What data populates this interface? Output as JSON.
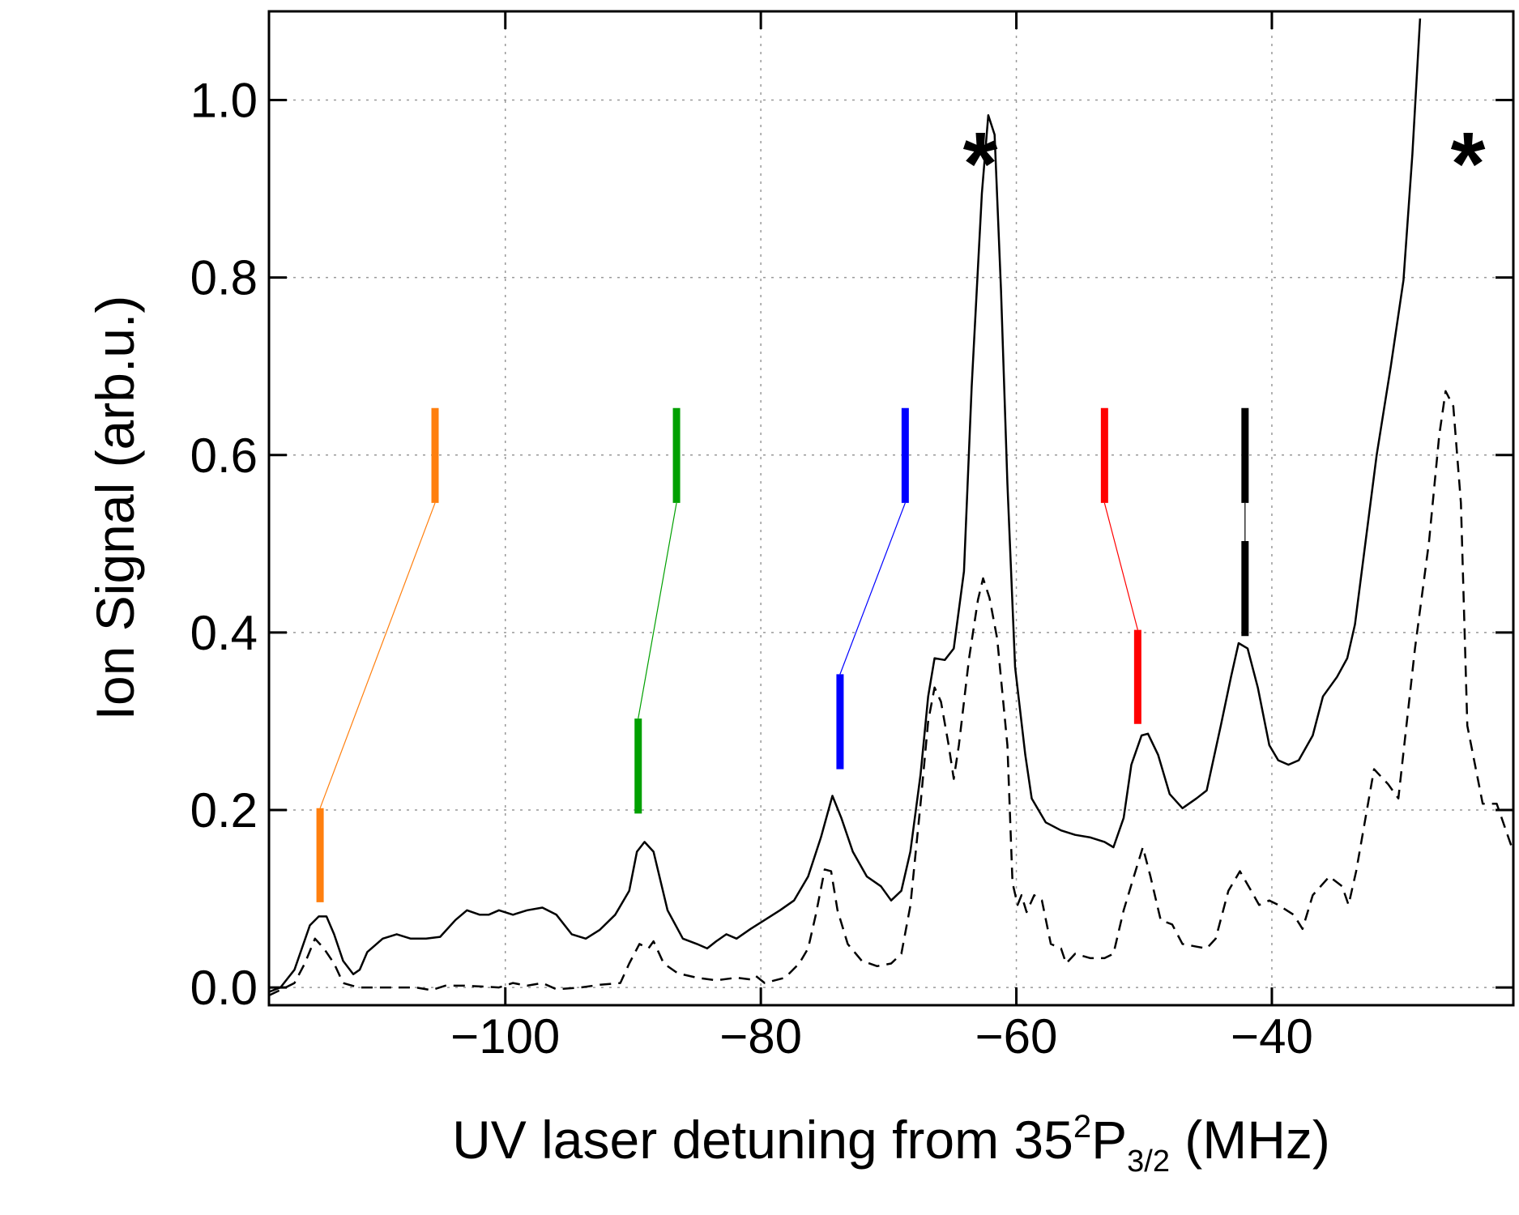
{
  "chart_data": {
    "type": "line",
    "xlabel": [
      "UV laser detuning from 35",
      "2",
      "P",
      "3/2",
      " (MHz)"
    ],
    "ylabel": "Ion Signal (arb.u.)",
    "xlim": [
      -118.5,
      -21.1
    ],
    "ylim": [
      -0.02,
      1.1
    ],
    "xticks": [
      {
        "value": -100,
        "label": "−100"
      },
      {
        "value": -80,
        "label": "−80"
      },
      {
        "value": -60,
        "label": "−60"
      },
      {
        "value": -40,
        "label": "−40"
      }
    ],
    "yticks": [
      {
        "value": 0,
        "label": "0.0"
      },
      0.2,
      0.4,
      0.6,
      0.8,
      {
        "value": 1,
        "label": "1.0"
      }
    ],
    "grid": true,
    "annotations": [
      "*",
      "*"
    ],
    "series": [
      {
        "color": "#000000",
        "linestyle": "solid",
        "x": [
          -118.5,
          -117.6,
          -116.5,
          -115.3,
          -114.6,
          -114.0,
          -113.4,
          -112.7,
          -111.9,
          -111.4,
          -110.8,
          -109.6,
          -108.5,
          -107.4,
          -106.2,
          -105.1,
          -103.9,
          -103.0,
          -102.0,
          -101.3,
          -100.5,
          -99.4,
          -98.3,
          -97.1,
          -96.0,
          -94.8,
          -93.7,
          -92.6,
          -91.4,
          -90.3,
          -89.7,
          -89.1,
          -88.4,
          -87.3,
          -86.1,
          -85.0,
          -84.2,
          -83.5,
          -82.7,
          -81.9,
          -80.8,
          -79.7,
          -78.5,
          -77.4,
          -76.3,
          -75.3,
          -74.4,
          -73.7,
          -72.8,
          -71.7,
          -70.6,
          -69.8,
          -69.0,
          -68.3,
          -67.5,
          -66.9,
          -66.4,
          -65.6,
          -64.9,
          -64.1,
          -63.5,
          -62.7,
          -62.2,
          -61.7,
          -61.2,
          -60.7,
          -60.1,
          -59.3,
          -58.8,
          -57.7,
          -56.5,
          -55.4,
          -54.2,
          -53.1,
          -52.4,
          -51.6,
          -51.0,
          -50.2,
          -49.7,
          -48.9,
          -48.0,
          -47.0,
          -45.9,
          -45.1,
          -44.0,
          -43.2,
          -42.6,
          -41.9,
          -41.1,
          -40.2,
          -39.5,
          -38.7,
          -37.9,
          -36.8,
          -36.0,
          -34.9,
          -34.1,
          -33.5,
          -31.8,
          -30.7,
          -29.7,
          -29.0,
          -28.4
        ],
        "values": [
          -0.005,
          0.0,
          0.02,
          0.07,
          0.08,
          0.08,
          0.06,
          0.03,
          0.015,
          0.02,
          0.04,
          0.055,
          0.06,
          0.055,
          0.055,
          0.057,
          0.076,
          0.087,
          0.082,
          0.082,
          0.087,
          0.082,
          0.087,
          0.09,
          0.082,
          0.06,
          0.055,
          0.065,
          0.082,
          0.109,
          0.153,
          0.164,
          0.153,
          0.087,
          0.055,
          0.049,
          0.044,
          0.052,
          0.06,
          0.055,
          0.066,
          0.076,
          0.087,
          0.098,
          0.125,
          0.169,
          0.216,
          0.191,
          0.153,
          0.125,
          0.114,
          0.098,
          0.109,
          0.153,
          0.24,
          0.328,
          0.371,
          0.369,
          0.382,
          0.469,
          0.677,
          0.895,
          0.983,
          0.961,
          0.786,
          0.568,
          0.361,
          0.262,
          0.213,
          0.186,
          0.177,
          0.172,
          0.169,
          0.164,
          0.158,
          0.191,
          0.251,
          0.284,
          0.286,
          0.262,
          0.218,
          0.202,
          0.213,
          0.222,
          0.295,
          0.35,
          0.388,
          0.382,
          0.338,
          0.273,
          0.256,
          0.251,
          0.256,
          0.284,
          0.328,
          0.35,
          0.371,
          0.409,
          0.6,
          0.699,
          0.797,
          0.939,
          1.092
        ]
      },
      {
        "color": "#000000",
        "linestyle": "dashed",
        "x": [
          -118.5,
          -117.2,
          -116.5,
          -115.7,
          -114.9,
          -114.2,
          -113.4,
          -112.7,
          -111.5,
          -110.0,
          -108.5,
          -107.0,
          -105.8,
          -104.7,
          -103.2,
          -101.7,
          -100.5,
          -99.4,
          -98.3,
          -97.1,
          -96.0,
          -94.1,
          -92.6,
          -91.0,
          -90.3,
          -89.5,
          -88.8,
          -88.4,
          -87.6,
          -86.5,
          -85.0,
          -83.5,
          -81.9,
          -80.8,
          -80.4,
          -79.7,
          -78.1,
          -77.0,
          -76.3,
          -75.7,
          -75.0,
          -74.5,
          -74.0,
          -73.2,
          -72.1,
          -70.9,
          -69.8,
          -69.0,
          -68.3,
          -67.5,
          -66.9,
          -66.4,
          -65.9,
          -65.3,
          -64.9,
          -64.5,
          -63.7,
          -63.0,
          -62.6,
          -62.1,
          -61.5,
          -60.7,
          -60.3,
          -59.9,
          -59.6,
          -59.2,
          -58.6,
          -58.0,
          -57.3,
          -56.5,
          -56.1,
          -55.4,
          -54.2,
          -53.1,
          -52.4,
          -51.6,
          -50.8,
          -50.1,
          -49.5,
          -48.7,
          -47.8,
          -47.0,
          -45.9,
          -45.1,
          -44.4,
          -43.4,
          -42.5,
          -41.7,
          -41.0,
          -40.2,
          -39.5,
          -38.3,
          -37.6,
          -36.8,
          -35.5,
          -34.5,
          -34.0,
          -33.4,
          -32.0,
          -30.9,
          -30.1,
          -28.8,
          -27.7,
          -26.9,
          -26.4,
          -25.8,
          -25.2,
          -24.7,
          -23.5,
          -22.4,
          -21.1
        ],
        "values": [
          -0.009,
          0.0,
          0.005,
          0.027,
          0.055,
          0.044,
          0.027,
          0.005,
          0.0,
          0.0,
          0.0,
          0.0,
          -0.003,
          0.002,
          0.002,
          0.001,
          0.0,
          0.005,
          0.002,
          0.005,
          -0.002,
          0.0,
          0.003,
          0.005,
          0.027,
          0.049,
          0.044,
          0.052,
          0.027,
          0.016,
          0.011,
          0.008,
          0.011,
          0.009,
          0.013,
          0.005,
          0.011,
          0.027,
          0.044,
          0.082,
          0.133,
          0.131,
          0.087,
          0.049,
          0.03,
          0.024,
          0.027,
          0.038,
          0.092,
          0.207,
          0.3,
          0.338,
          0.322,
          0.273,
          0.235,
          0.273,
          0.371,
          0.437,
          0.461,
          0.439,
          0.393,
          0.273,
          0.118,
          0.093,
          0.104,
          0.085,
          0.104,
          0.098,
          0.049,
          0.044,
          0.027,
          0.038,
          0.033,
          0.033,
          0.038,
          0.087,
          0.125,
          0.158,
          0.125,
          0.076,
          0.071,
          0.049,
          0.046,
          0.044,
          0.055,
          0.109,
          0.131,
          0.111,
          0.093,
          0.098,
          0.093,
          0.082,
          0.066,
          0.104,
          0.125,
          0.114,
          0.093,
          0.131,
          0.246,
          0.229,
          0.213,
          0.382,
          0.502,
          0.622,
          0.672,
          0.655,
          0.546,
          0.295,
          0.207,
          0.207,
          0.153
        ]
      }
    ],
    "markers": [
      {
        "color": "#ff7f0e",
        "top": {
          "x": -105.5,
          "ymin": 0.546,
          "ymax": 0.653
        },
        "bottom": {
          "x": -114.5,
          "ymin": 0.096,
          "ymax": 0.202
        }
      },
      {
        "color": "#00a000",
        "top": {
          "x": -86.6,
          "ymin": 0.546,
          "ymax": 0.653
        },
        "bottom": {
          "x": -89.6,
          "ymin": 0.196,
          "ymax": 0.303
        }
      },
      {
        "color": "#0000ff",
        "top": {
          "x": -68.7,
          "ymin": 0.546,
          "ymax": 0.653
        },
        "bottom": {
          "x": -73.8,
          "ymin": 0.246,
          "ymax": 0.353
        }
      },
      {
        "color": "#ff0000",
        "top": {
          "x": -53.1,
          "ymin": 0.546,
          "ymax": 0.653
        },
        "bottom": {
          "x": -50.5,
          "ymin": 0.297,
          "ymax": 0.403
        }
      },
      {
        "color": "#000000",
        "top": {
          "x": -42.1,
          "ymin": 0.546,
          "ymax": 0.653
        },
        "bottom": {
          "x": -42.1,
          "ymin": 0.396,
          "ymax": 0.503
        }
      }
    ]
  }
}
